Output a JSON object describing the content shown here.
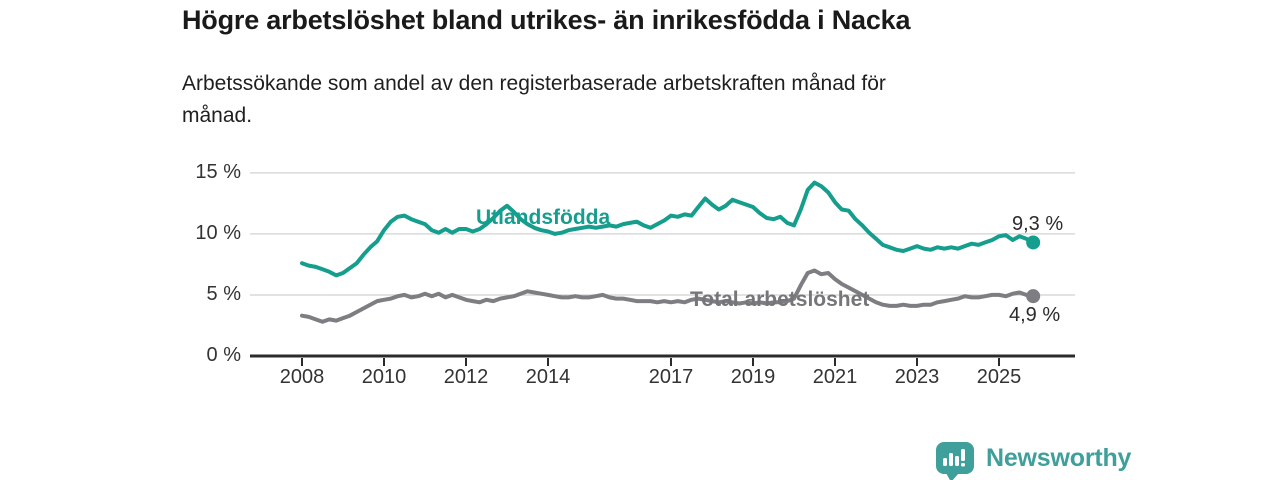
{
  "header": {
    "title": "Högre arbetslöshet bland utrikes- än inrikesfödda i Nacka",
    "subtitle_line1": "Arbetssökande som andel av den registerbaserade arbetskraften månad för",
    "subtitle_line2": "månad."
  },
  "chart_data": {
    "type": "line",
    "title": "Högre arbetslöshet bland utrikes- än inrikesfödda i Nacka",
    "subtitle": "Arbetssökande som andel av den registerbaserade arbetskraften månad för månad.",
    "x_unit": "year",
    "x_start_year": 2008.0,
    "x_step_months": 2,
    "x_end_label": "2025-11",
    "x_ticks": [
      2008,
      2010,
      2012,
      2014,
      2017,
      2019,
      2021,
      2023,
      2025
    ],
    "y_ticks": [
      0,
      5,
      10,
      15
    ],
    "y_tick_suffix": " %",
    "ylim": [
      0,
      15.5
    ],
    "grid": true,
    "legend_position": "inline-on-line",
    "series": [
      {
        "name": "Utlandsfödda",
        "color": "#159e8d",
        "end_label": "9,3 %",
        "end_value": 9.3,
        "values": [
          7.6,
          7.4,
          7.3,
          7.1,
          6.9,
          6.6,
          6.8,
          7.2,
          7.6,
          8.3,
          8.9,
          9.4,
          10.3,
          11.0,
          11.4,
          11.5,
          11.2,
          11.0,
          10.8,
          10.3,
          10.1,
          10.4,
          10.1,
          10.4,
          10.4,
          10.2,
          10.4,
          10.8,
          11.3,
          11.9,
          12.3,
          11.8,
          11.2,
          10.8,
          10.5,
          10.3,
          10.2,
          10.0,
          10.1,
          10.3,
          10.4,
          10.5,
          10.6,
          10.5,
          10.6,
          10.7,
          10.6,
          10.8,
          10.9,
          11.0,
          10.7,
          10.5,
          10.8,
          11.1,
          11.5,
          11.4,
          11.6,
          11.5,
          12.2,
          12.9,
          12.4,
          12.0,
          12.3,
          12.8,
          12.6,
          12.4,
          12.2,
          11.7,
          11.3,
          11.2,
          11.4,
          10.9,
          10.7,
          12.0,
          13.6,
          14.2,
          13.9,
          13.4,
          12.6,
          12.0,
          11.9,
          11.2,
          10.7,
          10.1,
          9.6,
          9.1,
          8.9,
          8.7,
          8.6,
          8.8,
          9.0,
          8.8,
          8.7,
          8.9,
          8.8,
          8.9,
          8.8,
          9.0,
          9.2,
          9.1,
          9.3,
          9.5,
          9.8,
          9.9,
          9.5,
          9.8,
          9.6,
          9.3
        ]
      },
      {
        "name": "Total arbetslöshet",
        "color": "#7d7d82",
        "end_label": "4,9 %",
        "end_value": 4.9,
        "values": [
          3.3,
          3.2,
          3.0,
          2.8,
          3.0,
          2.9,
          3.1,
          3.3,
          3.6,
          3.9,
          4.2,
          4.5,
          4.6,
          4.7,
          4.9,
          5.0,
          4.8,
          4.9,
          5.1,
          4.9,
          5.1,
          4.8,
          5.0,
          4.8,
          4.6,
          4.5,
          4.4,
          4.6,
          4.5,
          4.7,
          4.8,
          4.9,
          5.1,
          5.3,
          5.2,
          5.1,
          5.0,
          4.9,
          4.8,
          4.8,
          4.9,
          4.8,
          4.8,
          4.9,
          5.0,
          4.8,
          4.7,
          4.7,
          4.6,
          4.5,
          4.5,
          4.5,
          4.4,
          4.5,
          4.4,
          4.5,
          4.4,
          4.6,
          4.7,
          4.6,
          4.5,
          4.4,
          4.5,
          4.4,
          4.3,
          4.4,
          4.3,
          4.4,
          4.3,
          4.4,
          4.4,
          4.5,
          4.7,
          5.8,
          6.8,
          7.0,
          6.7,
          6.8,
          6.3,
          5.9,
          5.6,
          5.3,
          5.0,
          4.7,
          4.4,
          4.2,
          4.1,
          4.1,
          4.2,
          4.1,
          4.1,
          4.2,
          4.2,
          4.4,
          4.5,
          4.6,
          4.7,
          4.9,
          4.8,
          4.8,
          4.9,
          5.0,
          5.0,
          4.9,
          5.1,
          5.2,
          5.0,
          4.9
        ]
      }
    ]
  },
  "footer": {
    "brand": "Newsworthy"
  },
  "colors": {
    "accent_teal": "#159e8d",
    "line_gray": "#7d7d82",
    "brand_teal": "#3f9f9a",
    "grid": "#d9d9d9",
    "axis": "#2b2b2b"
  }
}
